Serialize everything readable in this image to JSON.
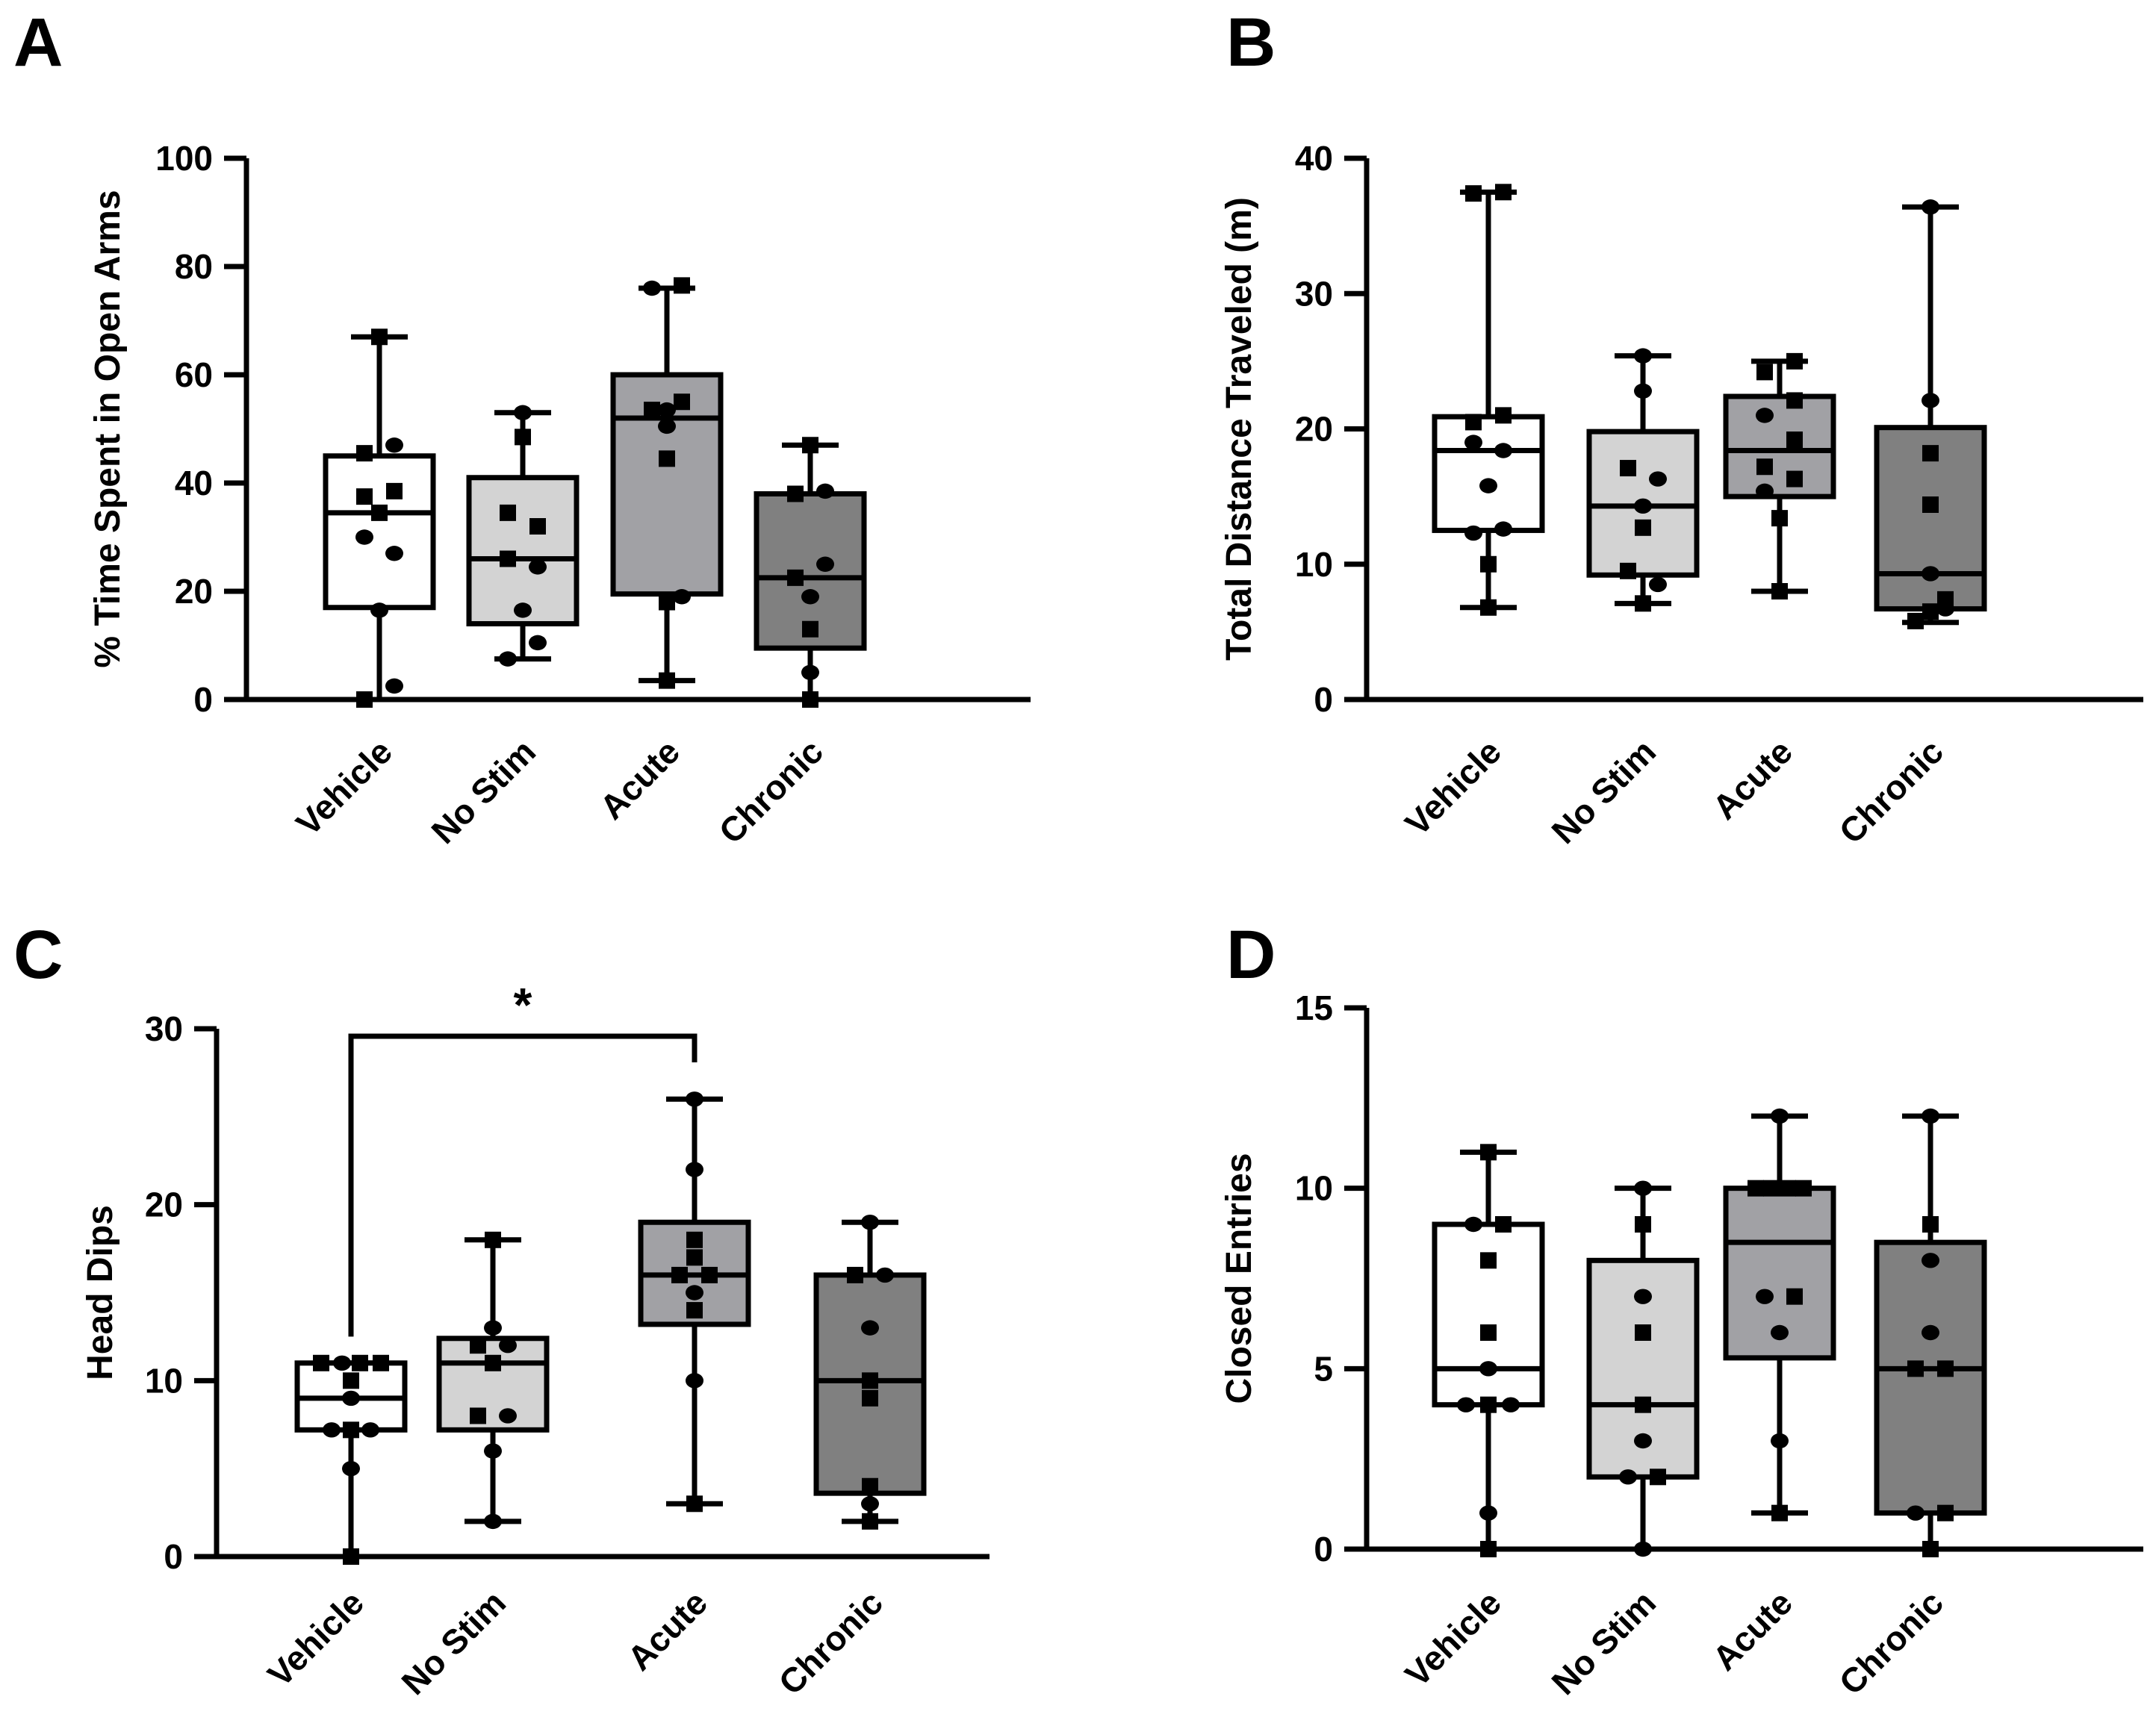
{
  "figure": {
    "panels": [
      "A",
      "B",
      "C",
      "D"
    ]
  },
  "chart_data": [
    {
      "panel": "A",
      "type": "box",
      "title": "",
      "xlabel": "",
      "ylabel": "% Time Spent in Open Arms",
      "ylim": [
        0,
        100
      ],
      "yticks": [
        0,
        20,
        40,
        60,
        80,
        100
      ],
      "categories": [
        "Vehicle",
        "No Stim",
        "Acute",
        "Chronic"
      ],
      "fills": [
        "#ffffff",
        "#d3d3d3",
        "#a1a1a5",
        "#808080"
      ],
      "boxes": [
        {
          "min": 0,
          "q1": 17,
          "median": 34.5,
          "q3": 45,
          "max": 67
        },
        {
          "min": 7.5,
          "q1": 14,
          "median": 26,
          "q3": 41,
          "max": 53
        },
        {
          "min": 3.5,
          "q1": 19.5,
          "median": 52,
          "q3": 60,
          "max": 76
        },
        {
          "min": 0,
          "q1": 9.5,
          "median": 22.5,
          "q3": 38,
          "max": 47
        }
      ],
      "points": [
        [
          {
            "v": 67,
            "m": "square",
            "o": 0
          },
          {
            "v": 45.5,
            "m": "square",
            "o": -1
          },
          {
            "v": 47,
            "m": "circle",
            "o": 1
          },
          {
            "v": 37.5,
            "m": "square",
            "o": -1
          },
          {
            "v": 38.5,
            "m": "square",
            "o": 1
          },
          {
            "v": 34.5,
            "m": "square",
            "o": 0
          },
          {
            "v": 30,
            "m": "circle",
            "o": -1
          },
          {
            "v": 27,
            "m": "circle",
            "o": 1
          },
          {
            "v": 16.5,
            "m": "circle",
            "o": 0
          },
          {
            "v": 2.5,
            "m": "circle",
            "o": 1
          },
          {
            "v": 0,
            "m": "square",
            "o": -1
          }
        ],
        [
          {
            "v": 53,
            "m": "circle",
            "o": 0
          },
          {
            "v": 48.5,
            "m": "square",
            "o": 0
          },
          {
            "v": 34.5,
            "m": "square",
            "o": -1
          },
          {
            "v": 32,
            "m": "square",
            "o": 1
          },
          {
            "v": 26,
            "m": "square",
            "o": -1
          },
          {
            "v": 24.5,
            "m": "circle",
            "o": 1
          },
          {
            "v": 16.5,
            "m": "circle",
            "o": 0
          },
          {
            "v": 10.5,
            "m": "circle",
            "o": 1
          },
          {
            "v": 7.5,
            "m": "circle",
            "o": -1
          }
        ],
        [
          {
            "v": 76,
            "m": "circle",
            "o": -1
          },
          {
            "v": 76.5,
            "m": "square",
            "o": 1
          },
          {
            "v": 53.5,
            "m": "square",
            "o": -1
          },
          {
            "v": 53.5,
            "m": "circle",
            "o": 0
          },
          {
            "v": 55,
            "m": "square",
            "o": 1
          },
          {
            "v": 50.5,
            "m": "circle",
            "o": 0
          },
          {
            "v": 44.5,
            "m": "square",
            "o": 0
          },
          {
            "v": 18,
            "m": "square",
            "o": 0
          },
          {
            "v": 19,
            "m": "circle",
            "o": 1
          },
          {
            "v": 3.5,
            "m": "square",
            "o": 0
          }
        ],
        [
          {
            "v": 47,
            "m": "square",
            "o": 0
          },
          {
            "v": 38,
            "m": "square",
            "o": -1
          },
          {
            "v": 38.5,
            "m": "circle",
            "o": 1
          },
          {
            "v": 25,
            "m": "circle",
            "o": 1
          },
          {
            "v": 22.5,
            "m": "square",
            "o": -1
          },
          {
            "v": 19,
            "m": "circle",
            "o": 0
          },
          {
            "v": 13,
            "m": "square",
            "o": 0
          },
          {
            "v": 5,
            "m": "circle",
            "o": 0
          },
          {
            "v": 0,
            "m": "square",
            "o": 0
          }
        ]
      ]
    },
    {
      "panel": "B",
      "type": "box",
      "title": "",
      "xlabel": "",
      "ylabel": "Total Distance Traveled (m)",
      "ylim": [
        0,
        40
      ],
      "yticks": [
        0,
        10,
        20,
        30,
        40
      ],
      "categories": [
        "Vehicle",
        "No Stim",
        "Acute",
        "Chronic"
      ],
      "fills": [
        "#ffffff",
        "#d3d3d3",
        "#a1a1a5",
        "#808080"
      ],
      "boxes": [
        {
          "min": 6.8,
          "q1": 12.5,
          "median": 18.4,
          "q3": 20.9,
          "max": 37.5
        },
        {
          "min": 7.1,
          "q1": 9.2,
          "median": 14.3,
          "q3": 19.8,
          "max": 25.4
        },
        {
          "min": 8,
          "q1": 15,
          "median": 18.4,
          "q3": 22.4,
          "max": 25
        },
        {
          "min": 5.7,
          "q1": 6.7,
          "median": 9.3,
          "q3": 20.1,
          "max": 36.4
        }
      ],
      "points": [
        [
          {
            "v": 37.4,
            "m": "square",
            "o": -1
          },
          {
            "v": 37.5,
            "m": "square",
            "o": 1
          },
          {
            "v": 20.5,
            "m": "square",
            "o": -1
          },
          {
            "v": 21,
            "m": "square",
            "o": 1
          },
          {
            "v": 19,
            "m": "circle",
            "o": -1
          },
          {
            "v": 18.4,
            "m": "circle",
            "o": 1
          },
          {
            "v": 15.8,
            "m": "circle",
            "o": 0
          },
          {
            "v": 12.3,
            "m": "circle",
            "o": -1
          },
          {
            "v": 12.6,
            "m": "circle",
            "o": 1
          },
          {
            "v": 10,
            "m": "square",
            "o": 0
          },
          {
            "v": 6.8,
            "m": "square",
            "o": 0
          }
        ],
        [
          {
            "v": 25.4,
            "m": "circle",
            "o": 0
          },
          {
            "v": 22.8,
            "m": "circle",
            "o": 0
          },
          {
            "v": 17.1,
            "m": "square",
            "o": -1
          },
          {
            "v": 16.3,
            "m": "circle",
            "o": 1
          },
          {
            "v": 14.3,
            "m": "circle",
            "o": 0
          },
          {
            "v": 12.7,
            "m": "square",
            "o": 0
          },
          {
            "v": 9.5,
            "m": "square",
            "o": -1
          },
          {
            "v": 8.5,
            "m": "circle",
            "o": 1
          },
          {
            "v": 7.1,
            "m": "square",
            "o": 0
          }
        ],
        [
          {
            "v": 24.2,
            "m": "square",
            "o": -1
          },
          {
            "v": 25,
            "m": "square",
            "o": 1
          },
          {
            "v": 22.1,
            "m": "square",
            "o": 1
          },
          {
            "v": 21,
            "m": "circle",
            "o": -1
          },
          {
            "v": 19.2,
            "m": "square",
            "o": 1
          },
          {
            "v": 17.2,
            "m": "square",
            "o": -1
          },
          {
            "v": 16.3,
            "m": "square",
            "o": 1
          },
          {
            "v": 15.4,
            "m": "circle",
            "o": -1
          },
          {
            "v": 13.4,
            "m": "square",
            "o": 0
          },
          {
            "v": 8,
            "m": "square",
            "o": 0
          }
        ],
        [
          {
            "v": 36.4,
            "m": "circle",
            "o": 0
          },
          {
            "v": 22.1,
            "m": "circle",
            "o": 0
          },
          {
            "v": 18.2,
            "m": "square",
            "o": 0
          },
          {
            "v": 14.4,
            "m": "square",
            "o": 0
          },
          {
            "v": 9.3,
            "m": "circle",
            "o": 0
          },
          {
            "v": 7.4,
            "m": "square",
            "o": 1
          },
          {
            "v": 6.7,
            "m": "circle",
            "o": 1
          },
          {
            "v": 6.5,
            "m": "square",
            "o": 0
          },
          {
            "v": 5.8,
            "m": "square",
            "o": -1
          }
        ]
      ]
    },
    {
      "panel": "C",
      "type": "box",
      "title": "",
      "xlabel": "",
      "ylabel": "Head Dips",
      "ylim": [
        0,
        30
      ],
      "yticks": [
        0,
        10,
        20,
        30
      ],
      "categories": [
        "Vehicle",
        "No Stim",
        "Acute",
        "Chronic"
      ],
      "fills": [
        "#ffffff",
        "#d3d3d3",
        "#a1a1a5",
        "#808080"
      ],
      "boxes": [
        {
          "min": 0,
          "q1": 7.2,
          "median": 9,
          "q3": 11,
          "max": 11
        },
        {
          "min": 2,
          "q1": 7.2,
          "median": 11,
          "q3": 12.4,
          "max": 18
        },
        {
          "min": 3,
          "q1": 13.2,
          "median": 16,
          "q3": 19,
          "max": 26
        },
        {
          "min": 2,
          "q1": 3.6,
          "median": 10,
          "q3": 16,
          "max": 19
        }
      ],
      "significance": {
        "from": 0,
        "to": 2,
        "label": "*"
      },
      "points": [
        [
          {
            "v": 11,
            "m": "square",
            "o": -2
          },
          {
            "v": 11,
            "m": "circle",
            "o": -0.6
          },
          {
            "v": 11,
            "m": "square",
            "o": 0.6
          },
          {
            "v": 11,
            "m": "square",
            "o": 2
          },
          {
            "v": 10,
            "m": "square",
            "o": 0
          },
          {
            "v": 9,
            "m": "circle",
            "o": 0
          },
          {
            "v": 7.2,
            "m": "circle",
            "o": -1.3
          },
          {
            "v": 7.2,
            "m": "square",
            "o": 0
          },
          {
            "v": 7.2,
            "m": "circle",
            "o": 1.3
          },
          {
            "v": 5,
            "m": "circle",
            "o": 0
          },
          {
            "v": 0,
            "m": "square",
            "o": 0
          }
        ],
        [
          {
            "v": 18,
            "m": "square",
            "o": 0
          },
          {
            "v": 13,
            "m": "circle",
            "o": 0
          },
          {
            "v": 12,
            "m": "square",
            "o": -1
          },
          {
            "v": 12,
            "m": "circle",
            "o": 1
          },
          {
            "v": 11,
            "m": "square",
            "o": 0
          },
          {
            "v": 8,
            "m": "square",
            "o": -1
          },
          {
            "v": 8,
            "m": "circle",
            "o": 1
          },
          {
            "v": 6,
            "m": "circle",
            "o": 0
          },
          {
            "v": 2,
            "m": "circle",
            "o": 0
          }
        ],
        [
          {
            "v": 26,
            "m": "circle",
            "o": 0
          },
          {
            "v": 22,
            "m": "circle",
            "o": 0
          },
          {
            "v": 18,
            "m": "square",
            "o": 0
          },
          {
            "v": 17,
            "m": "square",
            "o": 0
          },
          {
            "v": 16,
            "m": "square",
            "o": -1
          },
          {
            "v": 16,
            "m": "square",
            "o": 1
          },
          {
            "v": 15,
            "m": "circle",
            "o": 0
          },
          {
            "v": 14,
            "m": "square",
            "o": 0
          },
          {
            "v": 10,
            "m": "circle",
            "o": 0
          },
          {
            "v": 3,
            "m": "square",
            "o": 0
          }
        ],
        [
          {
            "v": 19,
            "m": "circle",
            "o": 0
          },
          {
            "v": 16,
            "m": "square",
            "o": -1
          },
          {
            "v": 16,
            "m": "circle",
            "o": 1
          },
          {
            "v": 13,
            "m": "circle",
            "o": 0
          },
          {
            "v": 10,
            "m": "square",
            "o": 0
          },
          {
            "v": 9,
            "m": "square",
            "o": 0
          },
          {
            "v": 4,
            "m": "square",
            "o": 0
          },
          {
            "v": 3,
            "m": "circle",
            "o": 0
          },
          {
            "v": 2,
            "m": "square",
            "o": 0
          }
        ]
      ]
    },
    {
      "panel": "D",
      "type": "box",
      "title": "",
      "xlabel": "",
      "ylabel": "Closed Entries",
      "ylim": [
        0,
        15
      ],
      "yticks": [
        0,
        5,
        10,
        15
      ],
      "categories": [
        "Vehicle",
        "No Stim",
        "Acute",
        "Chronic"
      ],
      "fills": [
        "#ffffff",
        "#d3d3d3",
        "#a1a1a5",
        "#808080"
      ],
      "boxes": [
        {
          "min": 0,
          "q1": 4,
          "median": 5,
          "q3": 9,
          "max": 11
        },
        {
          "min": 0,
          "q1": 2,
          "median": 4,
          "q3": 8,
          "max": 10
        },
        {
          "min": 1,
          "q1": 5.3,
          "median": 8.5,
          "q3": 10,
          "max": 12
        },
        {
          "min": 0,
          "q1": 1,
          "median": 5,
          "q3": 8.5,
          "max": 12
        }
      ],
      "points": [
        [
          {
            "v": 11,
            "m": "square",
            "o": 0
          },
          {
            "v": 9,
            "m": "circle",
            "o": -1
          },
          {
            "v": 9,
            "m": "square",
            "o": 1
          },
          {
            "v": 8,
            "m": "square",
            "o": 0
          },
          {
            "v": 6,
            "m": "square",
            "o": 0
          },
          {
            "v": 5,
            "m": "circle",
            "o": 0
          },
          {
            "v": 4,
            "m": "circle",
            "o": -1.5
          },
          {
            "v": 4,
            "m": "square",
            "o": 0
          },
          {
            "v": 4,
            "m": "circle",
            "o": 1.5
          },
          {
            "v": 1,
            "m": "circle",
            "o": 0
          },
          {
            "v": 0,
            "m": "square",
            "o": 0
          }
        ],
        [
          {
            "v": 10,
            "m": "circle",
            "o": 0
          },
          {
            "v": 9,
            "m": "square",
            "o": 0
          },
          {
            "v": 7,
            "m": "circle",
            "o": 0
          },
          {
            "v": 6,
            "m": "square",
            "o": 0
          },
          {
            "v": 4,
            "m": "square",
            "o": 0
          },
          {
            "v": 3,
            "m": "circle",
            "o": 0
          },
          {
            "v": 2,
            "m": "circle",
            "o": -1
          },
          {
            "v": 2,
            "m": "square",
            "o": 1
          },
          {
            "v": 0,
            "m": "circle",
            "o": 0
          }
        ],
        [
          {
            "v": 12,
            "m": "circle",
            "o": 0
          },
          {
            "v": 10,
            "m": "square",
            "o": -1.6
          },
          {
            "v": 10,
            "m": "square",
            "o": -0.55
          },
          {
            "v": 10,
            "m": "square",
            "o": 0.55
          },
          {
            "v": 10,
            "m": "square",
            "o": 1.6
          },
          {
            "v": 7,
            "m": "circle",
            "o": -1
          },
          {
            "v": 7,
            "m": "square",
            "o": 1
          },
          {
            "v": 6,
            "m": "circle",
            "o": 0
          },
          {
            "v": 3,
            "m": "circle",
            "o": 0
          },
          {
            "v": 1,
            "m": "square",
            "o": 0
          }
        ],
        [
          {
            "v": 12,
            "m": "circle",
            "o": 0
          },
          {
            "v": 9,
            "m": "square",
            "o": 0
          },
          {
            "v": 8,
            "m": "circle",
            "o": 0
          },
          {
            "v": 6,
            "m": "circle",
            "o": 0
          },
          {
            "v": 5,
            "m": "square",
            "o": -1
          },
          {
            "v": 5,
            "m": "square",
            "o": 1
          },
          {
            "v": 1,
            "m": "circle",
            "o": -1
          },
          {
            "v": 1,
            "m": "square",
            "o": 1
          },
          {
            "v": 0,
            "m": "square",
            "o": 0
          }
        ]
      ]
    }
  ]
}
